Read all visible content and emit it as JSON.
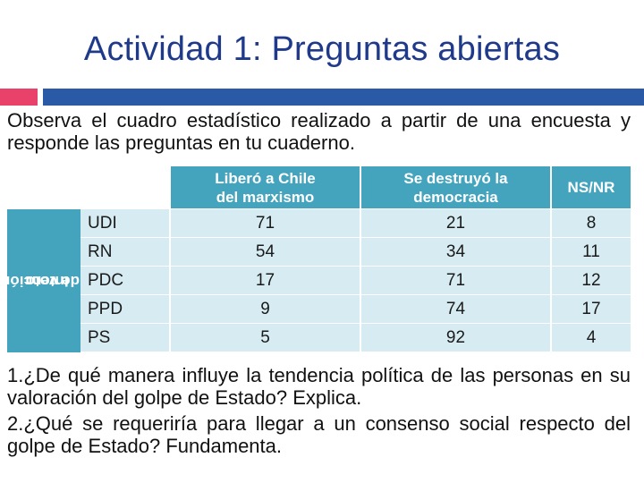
{
  "slide": {
    "title": "Actividad 1: Preguntas abiertas",
    "accent_colors": {
      "red": "#e8426a",
      "blue": "#2a5aa6"
    },
    "intro": "Observa el cuadro estadístico realizado a partir de una encuesta y responde las preguntas en tu cuaderno."
  },
  "table": {
    "row_group_label_line1": "Intención",
    "row_group_label_line2": "de voto",
    "columns": [
      {
        "line1": "Liberó a Chile",
        "line2": "del marxismo"
      },
      {
        "line1": "Se destruyó la",
        "line2": "democracia"
      },
      {
        "line1": "NS/NR",
        "line2": ""
      }
    ],
    "rows": [
      {
        "party": "UDI",
        "values": [
          "71",
          "21",
          "8"
        ]
      },
      {
        "party": "RN",
        "values": [
          "54",
          "34",
          "11"
        ]
      },
      {
        "party": "PDC",
        "values": [
          "17",
          "71",
          "12"
        ]
      },
      {
        "party": "PPD",
        "values": [
          "9",
          "74",
          "17"
        ]
      },
      {
        "party": "PS",
        "values": [
          "5",
          "92",
          "4"
        ]
      }
    ],
    "colors": {
      "header": "#44a3bd",
      "body": "#d7ecf2"
    }
  },
  "questions": [
    "1.¿De qué manera influye la tendencia política de las personas en su valoración del golpe de Estado? Explica.",
    "2.¿Qué se requeriría para llegar a un consenso social respecto del golpe de Estado? Fundamenta."
  ]
}
